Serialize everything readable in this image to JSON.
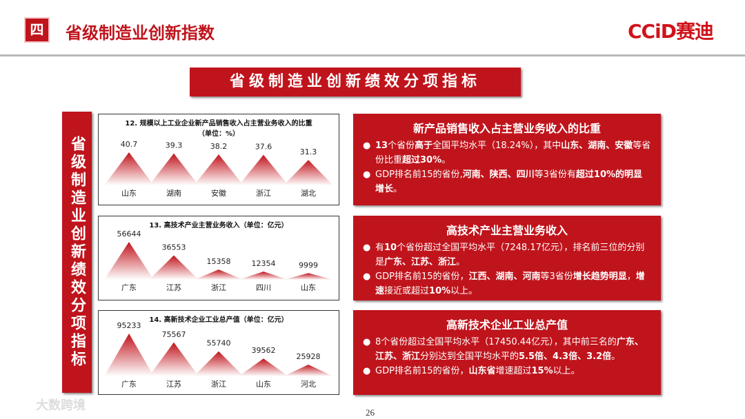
{
  "header": {
    "badge": "四",
    "title": "省级制造业创新指数",
    "logo": "CCiD赛迪"
  },
  "banner": "省级制造业创新绩效分项指标",
  "side_title": "省级制造业创新绩效分项指标",
  "chart_data": [
    {
      "type": "bar",
      "title": "12. 规模以上工业企业新产品销售收入占主营业务收入的比重（单位：%）",
      "categories": [
        "山东",
        "湖南",
        "安徽",
        "浙江",
        "湖北"
      ],
      "values": [
        40.7,
        39.3,
        38.2,
        37.6,
        31.3
      ],
      "color": "#c0141c"
    },
    {
      "type": "bar",
      "title": "13. 高技术产业主营业务收入（单位：亿元）",
      "categories": [
        "广东",
        "江苏",
        "浙江",
        "四川",
        "山东"
      ],
      "values": [
        56644,
        36553,
        15358,
        12354,
        9999
      ],
      "color": "#c0141c"
    },
    {
      "type": "bar",
      "title": "14. 高新技术企业工业总产值（单位：亿元）",
      "categories": [
        "广东",
        "江苏",
        "浙江",
        "山东",
        "河北"
      ],
      "values": [
        95233,
        75567,
        55740,
        39562,
        25928
      ],
      "color": "#c0141c"
    }
  ],
  "panels": [
    {
      "title": "新产品销售收入占主营业务收入的比重",
      "bullets": [
        [
          {
            "text": "13",
            "bold": true
          },
          {
            "text": "个省份",
            "bold": false
          },
          {
            "text": "高于",
            "bold": true
          },
          {
            "text": "全国平均水平（18.24%），其中",
            "bold": false
          },
          {
            "text": "山东、湖南、安徽",
            "bold": true
          },
          {
            "text": "等省份比重",
            "bold": false
          },
          {
            "text": "超过30%",
            "bold": true
          },
          {
            "text": "。",
            "bold": false
          }
        ],
        [
          {
            "text": "GDP排名前15的省份,",
            "bold": false
          },
          {
            "text": "河南、陕西、四川",
            "bold": true
          },
          {
            "text": "等3省份有",
            "bold": false
          },
          {
            "text": "超过10%的明显增长",
            "bold": true
          },
          {
            "text": "。",
            "bold": false
          }
        ]
      ]
    },
    {
      "title": "高技术产业主营业务收入",
      "bullets": [
        [
          {
            "text": "有",
            "bold": false
          },
          {
            "text": "10",
            "bold": true
          },
          {
            "text": "个省份超过全国平均水平（7248.17亿元），排名前三位的分别是",
            "bold": false
          },
          {
            "text": "广东、江苏、浙江",
            "bold": true
          },
          {
            "text": "。",
            "bold": false
          }
        ],
        [
          {
            "text": "GDP排名前15的省份，",
            "bold": false
          },
          {
            "text": "江西、湖南、河南",
            "bold": true
          },
          {
            "text": "等3省份",
            "bold": false
          },
          {
            "text": "增长趋势明显",
            "bold": true
          },
          {
            "text": "，",
            "bold": false
          },
          {
            "text": "增速",
            "bold": true
          },
          {
            "text": "接近或超过",
            "bold": false
          },
          {
            "text": "10%",
            "bold": true
          },
          {
            "text": "以上。",
            "bold": false
          }
        ]
      ]
    },
    {
      "title": "高新技术企业工业总产值",
      "bullets": [
        [
          {
            "text": "8个省份超过全国平均水平（17450.44亿元），其中前三名的",
            "bold": false
          },
          {
            "text": "广东、江苏、浙江",
            "bold": true
          },
          {
            "text": "分别达到全国平均水平的",
            "bold": false
          },
          {
            "text": "5.5倍、4.3倍、3.2倍",
            "bold": true
          },
          {
            "text": "。",
            "bold": false
          }
        ],
        [
          {
            "text": "GDP排名前15的省份，",
            "bold": false
          },
          {
            "text": "山东省",
            "bold": true
          },
          {
            "text": "增速超过",
            "bold": false
          },
          {
            "text": "15%",
            "bold": true
          },
          {
            "text": "以上。",
            "bold": false
          }
        ]
      ]
    }
  ],
  "page_number": 26,
  "watermark": "大数跨境"
}
